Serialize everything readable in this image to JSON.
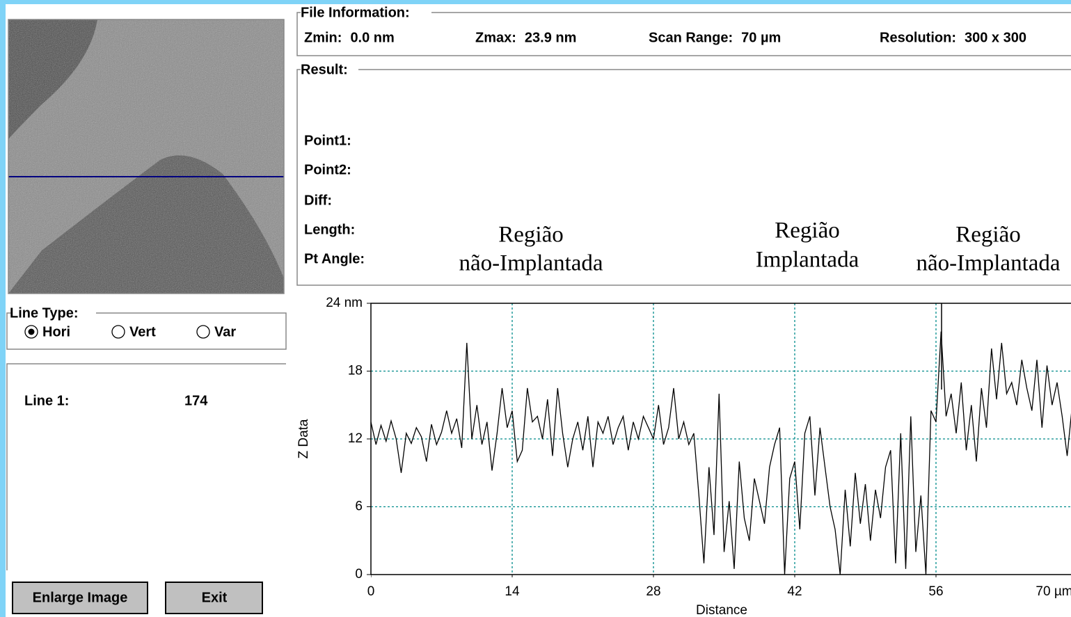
{
  "file_information": {
    "title": "File Information:",
    "fields": [
      {
        "label": "Zmin:",
        "value": "0.0 nm"
      },
      {
        "label": "Zmax:",
        "value": "23.9 nm"
      },
      {
        "label": "Scan Range:",
        "value": "70 µm"
      },
      {
        "label": "Resolution:",
        "value": "300 x 300"
      }
    ]
  },
  "result": {
    "title": "Result:",
    "fields": [
      "Point1:",
      "Point2:",
      "Diff:",
      "Length:",
      "Pt Angle:"
    ]
  },
  "annotations": [
    [
      "Região",
      "não-Implantada"
    ],
    [
      "Região",
      "Implantada"
    ],
    [
      "Região",
      "não-Implantada"
    ]
  ],
  "line_type": {
    "title": "Line Type:",
    "options": [
      "Hori",
      "Vert",
      "Var"
    ],
    "selected": 0
  },
  "line_info": {
    "label": "Line 1:",
    "value": "174"
  },
  "buttons": [
    "Enlarge Image",
    "Exit"
  ],
  "chart_data": {
    "type": "line",
    "xlabel": "Distance",
    "ylabel": "Z Data",
    "x": [
      0,
      0.5,
      1,
      1.5,
      2,
      2.5,
      3,
      3.5,
      4,
      4.5,
      5,
      5.5,
      6,
      6.5,
      7,
      7.5,
      8,
      8.5,
      9,
      9.5,
      10,
      10.5,
      11,
      11.5,
      12,
      12.5,
      13,
      13.5,
      14,
      14.5,
      15,
      15.5,
      16,
      16.5,
      17,
      17.5,
      18,
      18.5,
      19,
      19.5,
      20,
      20.5,
      21,
      21.5,
      22,
      22.5,
      23,
      23.5,
      24,
      24.5,
      25,
      25.5,
      26,
      26.5,
      27,
      27.5,
      28,
      28.5,
      29,
      29.5,
      30,
      30.5,
      31,
      31.5,
      32,
      32.5,
      33,
      33.5,
      34,
      34.5,
      35,
      35.5,
      36,
      36.5,
      37,
      37.5,
      38,
      38.5,
      39,
      39.5,
      40,
      40.5,
      41,
      41.5,
      42,
      42.5,
      43,
      43.5,
      44,
      44.5,
      45,
      45.5,
      46,
      46.5,
      47,
      47.5,
      48,
      48.5,
      49,
      49.5,
      50,
      50.5,
      51,
      51.5,
      52,
      52.5,
      53,
      53.5,
      54,
      54.5,
      55,
      55.5,
      56,
      56.5,
      57,
      57.5,
      58,
      58.5,
      59,
      59.5,
      60,
      60.5,
      61,
      61.5,
      62,
      62.5,
      63,
      63.5,
      64,
      64.5,
      65,
      65.5,
      66,
      66.5,
      67,
      67.5,
      68,
      68.5,
      69,
      69.5
    ],
    "series": [
      {
        "color": "#000000",
        "values": [
          13.5,
          11.5,
          13.2,
          11.8,
          13.6,
          12.0,
          9.0,
          12.5,
          11.6,
          13.0,
          12.2,
          10.0,
          13.3,
          11.5,
          12.6,
          14.5,
          12.5,
          13.8,
          11.2,
          20.5,
          12.0,
          15.0,
          11.5,
          13.5,
          9.2,
          12.5,
          16.5,
          13.0,
          14.5,
          10.0,
          11.0,
          16.5,
          13.5,
          14.0,
          12.0,
          15.5,
          10.5,
          16.5,
          12.5,
          9.5,
          12.0,
          13.5,
          11.0,
          14.0,
          9.5,
          13.5,
          12.5,
          14.0,
          11.5,
          13.0,
          14.0,
          11.0,
          13.5,
          12.0,
          14.0,
          13.0,
          12.0,
          15.0,
          11.5,
          13.0,
          16.5,
          12.0,
          13.5,
          11.5,
          12.5,
          7.0,
          1.0,
          9.5,
          3.5,
          16.0,
          2.0,
          6.5,
          0.5,
          10.0,
          5.0,
          3.0,
          8.5,
          6.5,
          4.5,
          9.5,
          11.5,
          13.0,
          0.0,
          8.5,
          10.0,
          4.0,
          12.5,
          14.0,
          7.0,
          13.0,
          9.5,
          6.0,
          4.0,
          0.0,
          7.5,
          2.5,
          9.0,
          4.5,
          8.0,
          3.0,
          7.5,
          5.0,
          9.5,
          11.0,
          1.0,
          12.5,
          0.5,
          14.0,
          2.0,
          7.0,
          0.0,
          14.5,
          13.5,
          21.5,
          14.0,
          16.0,
          12.5,
          17.0,
          11.0,
          15.0,
          10.0,
          16.5,
          13.0,
          20.0,
          15.5,
          20.5,
          16.0,
          17.0,
          15.0,
          19.0,
          16.5,
          14.5,
          19.0,
          13.0,
          18.5,
          15.0,
          17.0,
          14.0,
          10.5,
          15.0
        ]
      }
    ],
    "xlim": [
      0,
      70
    ],
    "ylim": [
      0,
      24
    ],
    "xticks": [
      0,
      14,
      28,
      42,
      56,
      {
        "value": 70,
        "label": "70 µm"
      }
    ],
    "yticks": [
      0,
      6,
      12,
      18,
      {
        "value": 24,
        "label": "24 nm"
      }
    ],
    "grid": true,
    "grid_color": "#008b8b"
  }
}
